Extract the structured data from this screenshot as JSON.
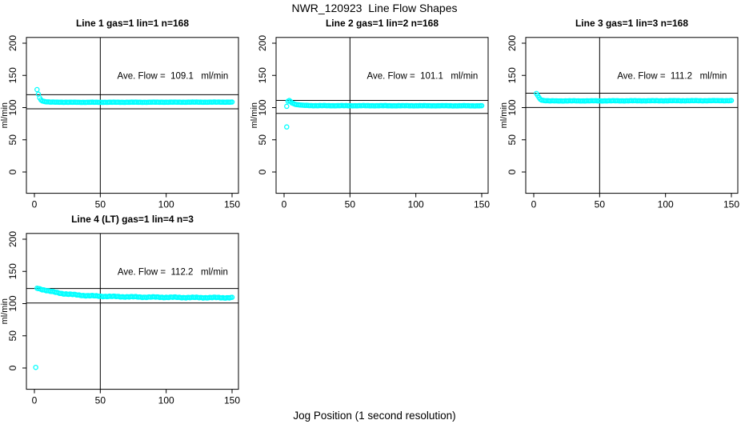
{
  "figure": {
    "title": "NWR_120923  Line Flow Shapes",
    "xlabel": "Jog Position (1 second resolution)"
  },
  "colors": {
    "points": "#00ffff",
    "axis": "#000000",
    "background": "#ffffff"
  },
  "chart_data": [
    {
      "type": "scatter",
      "title": "Line 1 gas=1 lin=1 n=168",
      "annotation": "Ave. Flow =  109.1   ml/min",
      "ave_flow_ml_min": 109.1,
      "n": 168,
      "ylabel": "ml/min",
      "xlim": [
        -6,
        156
      ],
      "ylim": [
        -33,
        209
      ],
      "x_ticks": [
        0,
        50,
        100,
        150
      ],
      "y_ticks": [
        0,
        50,
        100,
        150,
        200
      ],
      "vline_x": 50,
      "hlines": [
        120.0,
        98.2
      ],
      "series": {
        "x_start": 2,
        "x_end": 150,
        "jitter": 0.25,
        "keypoints": [
          [
            2,
            128
          ],
          [
            3,
            121
          ],
          [
            4,
            115
          ],
          [
            5,
            112
          ],
          [
            6,
            110.5
          ],
          [
            8,
            109.3
          ],
          [
            12,
            108.5
          ],
          [
            30,
            108.2
          ],
          [
            150,
            108.5
          ]
        ]
      },
      "outliers": []
    },
    {
      "type": "scatter",
      "title": "Line 2 gas=1 lin=2 n=168",
      "annotation": "Ave. Flow =  101.1   ml/min",
      "ave_flow_ml_min": 101.1,
      "n": 168,
      "ylabel": "ml/min",
      "xlim": [
        -6,
        156
      ],
      "ylim": [
        -33,
        209
      ],
      "x_ticks": [
        0,
        50,
        100,
        150
      ],
      "y_ticks": [
        0,
        50,
        100,
        150,
        200
      ],
      "vline_x": 50,
      "hlines": [
        111.2,
        91.0
      ],
      "series": {
        "x_start": 2,
        "x_end": 150,
        "jitter": 0.3,
        "keypoints": [
          [
            2,
            102
          ],
          [
            3,
            110
          ],
          [
            4,
            111
          ],
          [
            5,
            109.5
          ],
          [
            6,
            107.5
          ],
          [
            8,
            105.5
          ],
          [
            10,
            104.5
          ],
          [
            14,
            103.5
          ],
          [
            25,
            103
          ],
          [
            150,
            102.8
          ]
        ]
      },
      "outliers": [
        [
          2,
          70
        ]
      ]
    },
    {
      "type": "scatter",
      "title": "Line 3 gas=1 lin=3 n=168",
      "annotation": "Ave. Flow =  111.2   ml/min",
      "ave_flow_ml_min": 111.2,
      "n": 168,
      "ylabel": "ml/min",
      "xlim": [
        -6,
        156
      ],
      "ylim": [
        -33,
        209
      ],
      "x_ticks": [
        0,
        50,
        100,
        150
      ],
      "y_ticks": [
        0,
        50,
        100,
        150,
        200
      ],
      "vline_x": 50,
      "hlines": [
        122.3,
        100.1
      ],
      "series": {
        "x_start": 2,
        "x_end": 150,
        "jitter": 0.3,
        "keypoints": [
          [
            2,
            122
          ],
          [
            3,
            119
          ],
          [
            4,
            115.5
          ],
          [
            5,
            113
          ],
          [
            6,
            111.8
          ],
          [
            8,
            110.9
          ],
          [
            12,
            110.4
          ],
          [
            150,
            110.8
          ]
        ]
      },
      "outliers": []
    },
    {
      "type": "scatter",
      "title": "Line 4 (LT) gas=1 lin=4 n=3",
      "annotation": "Ave. Flow =  112.2   ml/min",
      "ave_flow_ml_min": 112.2,
      "n": 3,
      "ylabel": "ml/min",
      "xlim": [
        -6,
        156
      ],
      "ylim": [
        -33,
        209
      ],
      "x_ticks": [
        0,
        50,
        100,
        150
      ],
      "y_ticks": [
        0,
        50,
        100,
        150,
        200
      ],
      "vline_x": 50,
      "hlines": [
        123.4,
        101.0
      ],
      "series": {
        "x_start": 2,
        "x_end": 150,
        "jitter": 0.8,
        "keypoints": [
          [
            2,
            124
          ],
          [
            4,
            123
          ],
          [
            6,
            122
          ],
          [
            8,
            121
          ],
          [
            12,
            119
          ],
          [
            16,
            117.5
          ],
          [
            20,
            116
          ],
          [
            25,
            114.8
          ],
          [
            30,
            113.8
          ],
          [
            40,
            112.3
          ],
          [
            50,
            111.5
          ],
          [
            60,
            111
          ],
          [
            80,
            110.2
          ],
          [
            100,
            109.8
          ],
          [
            120,
            109.4
          ],
          [
            150,
            109.2
          ]
        ]
      },
      "outliers": [
        [
          1,
          1
        ]
      ]
    }
  ]
}
